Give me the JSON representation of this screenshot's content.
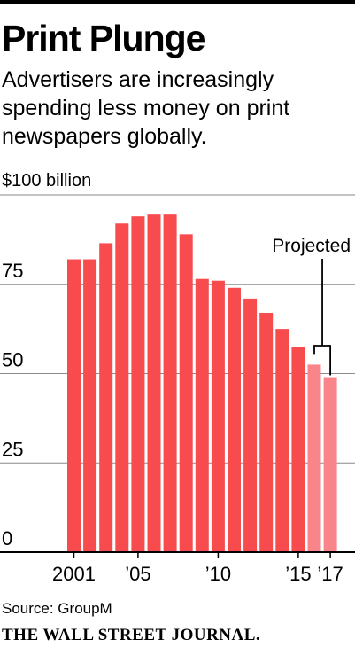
{
  "header": {
    "title": "Print Plunge",
    "subtitle": "Advertisers are increasingly spending less money on print newspapers globally."
  },
  "footer": {
    "source": "Source: GroupM",
    "publisher": "THE WALL STREET JOURNAL."
  },
  "chart_data": {
    "type": "bar",
    "title": "Print Plunge",
    "ylabel": "$100 billion",
    "ylim": [
      0,
      100
    ],
    "yticks": [
      {
        "value": 0,
        "label": "0"
      },
      {
        "value": 25,
        "label": "25"
      },
      {
        "value": 50,
        "label": "50"
      },
      {
        "value": 75,
        "label": "75"
      },
      {
        "value": 100,
        "label": "$100 billion"
      }
    ],
    "categories": [
      "2001",
      "2002",
      "2003",
      "2004",
      "2005",
      "2006",
      "2007",
      "2008",
      "2009",
      "2010",
      "2011",
      "2012",
      "2013",
      "2014",
      "2015",
      "2016",
      "2017"
    ],
    "xtick_labels": [
      {
        "category": "2001",
        "label": "2001"
      },
      {
        "category": "2005",
        "label": "’05"
      },
      {
        "category": "2010",
        "label": "’10"
      },
      {
        "category": "2015",
        "label": "’15"
      },
      {
        "category": "2017",
        "label": "’17"
      }
    ],
    "values": [
      82,
      82,
      86.5,
      92,
      94,
      94.5,
      94.5,
      89,
      76.5,
      76,
      74,
      71,
      67,
      62.5,
      57.5,
      52.5,
      49
    ],
    "projected_from": "2016",
    "annotation": "Projected",
    "colors": {
      "actual": "#f74b4e",
      "projected": "#f9858a",
      "grid": "#8a8a8a",
      "axis": "#000000"
    },
    "grid": true
  }
}
